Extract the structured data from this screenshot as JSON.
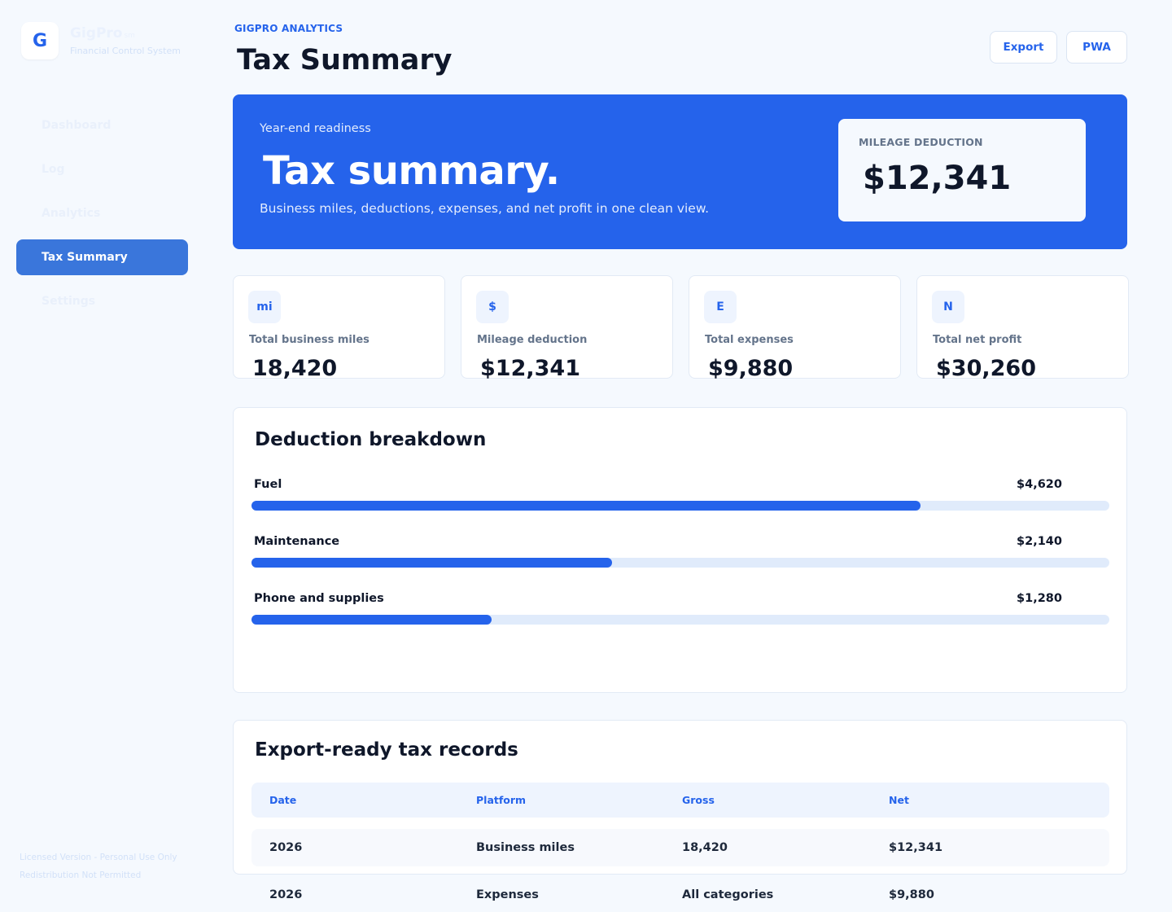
{
  "sidebar": {
    "logo_letter": "G",
    "brand_name": "GigPro",
    "brand_suffix": "sm",
    "brand_subtitle": "Financial Control System",
    "items": [
      {
        "label": "Dashboard",
        "active": false
      },
      {
        "label": "Log",
        "active": false
      },
      {
        "label": "Analytics",
        "active": false
      },
      {
        "label": "Tax Summary",
        "active": true
      },
      {
        "label": "Settings",
        "active": false
      }
    ],
    "license_line1": "Licensed Version - Personal Use Only",
    "license_line2": "Redistribution Not Permitted"
  },
  "header": {
    "eyebrow": "GIGPRO ANALYTICS",
    "title": "Tax Summary",
    "export_label": "Export",
    "pwa_label": "PWA"
  },
  "hero": {
    "eyebrow": "Year-end readiness",
    "title": "Tax summary.",
    "subtitle": "Business miles, deductions, expenses, and net profit in one clean view.",
    "card_label": "MILEAGE DEDUCTION",
    "card_value": "$12,341"
  },
  "stats": [
    {
      "icon": "mi",
      "label": "Total business miles",
      "value": "18,420"
    },
    {
      "icon": "$",
      "label": "Mileage deduction",
      "value": "$12,341"
    },
    {
      "icon": "E",
      "label": "Total expenses",
      "value": "$9,880"
    },
    {
      "icon": "N",
      "label": "Total net profit",
      "value": "$30,260"
    }
  ],
  "deductions": {
    "title": "Deduction breakdown",
    "items": [
      {
        "label": "Fuel",
        "amount": "$4,620",
        "fraction": 0.78
      },
      {
        "label": "Maintenance",
        "amount": "$2,140",
        "fraction": 0.42
      },
      {
        "label": "Phone and supplies",
        "amount": "$1,280",
        "fraction": 0.28
      }
    ]
  },
  "records": {
    "title": "Export-ready tax records",
    "columns": [
      "Date",
      "Platform",
      "Gross",
      "Net"
    ],
    "rows": [
      [
        "2026",
        "Business miles",
        "18,420",
        "$12,341"
      ],
      [
        "2026",
        "Expenses",
        "All categories",
        "$9,880"
      ]
    ]
  },
  "colors": {
    "accent": "#2563eb",
    "background": "#f5f9fe",
    "active_nav": "#3a76db",
    "track": "#e0ebfb"
  }
}
